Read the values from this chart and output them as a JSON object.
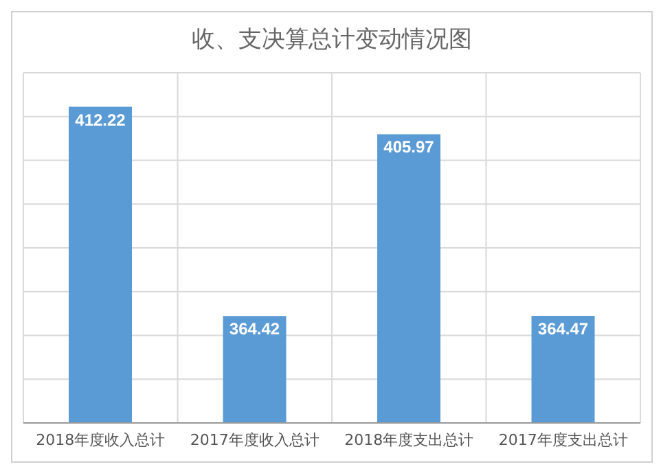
{
  "chart_data": {
    "type": "bar",
    "title": "收、支决算总计变动情况图",
    "categories": [
      "2018年度收入总计",
      "2017年度收入总计",
      "2018年度支出总计",
      "2017年度支出总计"
    ],
    "values": [
      412.22,
      364.42,
      405.97,
      364.47
    ],
    "color": "#5b9bd5",
    "ylim": [
      340,
      420
    ],
    "yticks": [
      {
        "value": 340,
        "label": null
      },
      {
        "value": 350,
        "label": null
      },
      {
        "value": 360,
        "label": null
      },
      {
        "value": 370,
        "label": null
      },
      {
        "value": 380,
        "label": null
      },
      {
        "value": 390,
        "label": null
      },
      {
        "value": 400,
        "label": null
      },
      {
        "value": 410,
        "label": null
      },
      {
        "value": 420,
        "label": null
      }
    ],
    "tick_labels": "x",
    "grid": true,
    "data_labels": true
  }
}
